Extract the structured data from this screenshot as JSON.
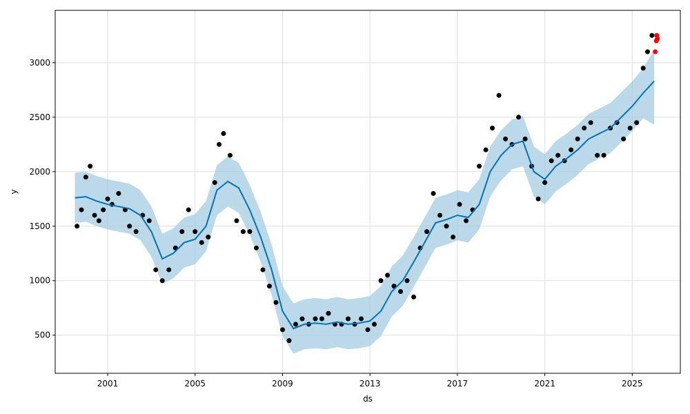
{
  "chart_data": {
    "type": "line",
    "title": "",
    "xlabel": "ds",
    "ylabel": "y",
    "xlim": [
      1998.6,
      2027.2
    ],
    "ylim": [
      150,
      3480
    ],
    "grid": true,
    "x_ticks": [
      2001,
      2005,
      2009,
      2013,
      2017,
      2021,
      2025
    ],
    "x_tick_labels": [
      "2001",
      "2005",
      "2009",
      "2013",
      "2017",
      "2021",
      "2025"
    ],
    "y_ticks": [
      500,
      1000,
      1500,
      2000,
      2500,
      3000
    ],
    "y_tick_labels": [
      "500",
      "1000",
      "1500",
      "2000",
      "2500",
      "3000"
    ],
    "colors": {
      "observed": "#000000",
      "forecast_line": "#0072B2",
      "uncertainty_band": "#A6CCE3",
      "recent_points": "#FF0000"
    },
    "series": [
      {
        "role": "forecast",
        "x": [
          1999.5,
          2000.0,
          2000.5,
          2001.0,
          2001.5,
          2002.0,
          2002.5,
          2003.0,
          2003.5,
          2004.0,
          2004.5,
          2005.0,
          2005.5,
          2006.0,
          2006.5,
          2007.0,
          2007.5,
          2008.0,
          2008.5,
          2009.0,
          2009.5,
          2010.0,
          2010.5,
          2011.0,
          2011.5,
          2012.0,
          2012.5,
          2013.0,
          2013.5,
          2014.0,
          2014.5,
          2015.0,
          2015.5,
          2016.0,
          2016.5,
          2017.0,
          2017.5,
          2018.0,
          2018.5,
          2019.0,
          2019.5,
          2020.0,
          2020.5,
          2021.0,
          2021.5,
          2022.0,
          2022.5,
          2023.0,
          2023.5,
          2024.0,
          2024.5,
          2025.0,
          2025.5,
          2026.0
        ],
        "y": [
          1760,
          1770,
          1730,
          1700,
          1680,
          1660,
          1600,
          1450,
          1200,
          1250,
          1350,
          1380,
          1500,
          1830,
          1910,
          1850,
          1650,
          1400,
          1100,
          720,
          560,
          600,
          610,
          600,
          620,
          600,
          610,
          630,
          720,
          900,
          1000,
          1170,
          1350,
          1530,
          1560,
          1600,
          1580,
          1700,
          2000,
          2150,
          2250,
          2280,
          2000,
          1930,
          2050,
          2120,
          2200,
          2300,
          2350,
          2400,
          2500,
          2600,
          2720,
          2830
        ]
      },
      {
        "role": "forecast_upper",
        "x": [
          1999.5,
          2000.0,
          2000.5,
          2001.0,
          2001.5,
          2002.0,
          2002.5,
          2003.0,
          2003.5,
          2004.0,
          2004.5,
          2005.0,
          2005.5,
          2006.0,
          2006.5,
          2007.0,
          2007.5,
          2008.0,
          2008.5,
          2009.0,
          2009.5,
          2010.0,
          2010.5,
          2011.0,
          2011.5,
          2012.0,
          2012.5,
          2013.0,
          2013.5,
          2014.0,
          2014.5,
          2015.0,
          2015.5,
          2016.0,
          2016.5,
          2017.0,
          2017.5,
          2018.0,
          2018.5,
          2019.0,
          2019.5,
          2020.0,
          2020.5,
          2021.0,
          2021.5,
          2022.0,
          2022.5,
          2023.0,
          2023.5,
          2024.0,
          2024.5,
          2025.0,
          2025.5,
          2026.0
        ],
        "y": [
          1990,
          2000,
          1960,
          1930,
          1910,
          1890,
          1830,
          1680,
          1430,
          1480,
          1580,
          1610,
          1730,
          2060,
          2140,
          2080,
          1880,
          1630,
          1330,
          950,
          790,
          830,
          840,
          830,
          850,
          830,
          840,
          860,
          950,
          1130,
          1230,
          1400,
          1580,
          1760,
          1790,
          1830,
          1810,
          1930,
          2230,
          2380,
          2480,
          2510,
          2230,
          2160,
          2280,
          2350,
          2430,
          2530,
          2580,
          2630,
          2730,
          2830,
          2950,
          3120
        ]
      },
      {
        "role": "forecast_lower",
        "x": [
          1999.5,
          2000.0,
          2000.5,
          2001.0,
          2001.5,
          2002.0,
          2002.5,
          2003.0,
          2003.5,
          2004.0,
          2004.5,
          2005.0,
          2005.5,
          2006.0,
          2006.5,
          2007.0,
          2007.5,
          2008.0,
          2008.5,
          2009.0,
          2009.5,
          2010.0,
          2010.5,
          2011.0,
          2011.5,
          2012.0,
          2012.5,
          2013.0,
          2013.5,
          2014.0,
          2014.5,
          2015.0,
          2015.5,
          2016.0,
          2016.5,
          2017.0,
          2017.5,
          2018.0,
          2018.5,
          2019.0,
          2019.5,
          2020.0,
          2020.5,
          2021.0,
          2021.5,
          2022.0,
          2022.5,
          2023.0,
          2023.5,
          2024.0,
          2024.5,
          2025.0,
          2025.5,
          2026.0
        ],
        "y": [
          1530,
          1540,
          1500,
          1470,
          1450,
          1430,
          1370,
          1220,
          970,
          1020,
          1120,
          1150,
          1270,
          1600,
          1680,
          1620,
          1420,
          1170,
          870,
          490,
          330,
          370,
          380,
          370,
          390,
          370,
          380,
          400,
          490,
          670,
          770,
          940,
          1120,
          1300,
          1330,
          1370,
          1350,
          1470,
          1770,
          1920,
          2020,
          2050,
          1770,
          1700,
          1820,
          1890,
          1970,
          2070,
          2120,
          2170,
          2270,
          2370,
          2490,
          2430
        ]
      },
      {
        "role": "observed",
        "x": [
          1999.6,
          1999.8,
          2000.0,
          2000.2,
          2000.4,
          2000.6,
          2000.8,
          2001.0,
          2001.2,
          2001.5,
          2001.8,
          2002.0,
          2002.3,
          2002.6,
          2002.9,
          2003.2,
          2003.5,
          2003.8,
          2004.1,
          2004.4,
          2004.7,
          2005.0,
          2005.3,
          2005.6,
          2005.9,
          2006.1,
          2006.3,
          2006.6,
          2006.9,
          2007.2,
          2007.5,
          2007.8,
          2008.1,
          2008.4,
          2008.7,
          2009.0,
          2009.3,
          2009.6,
          2009.9,
          2010.2,
          2010.5,
          2010.8,
          2011.1,
          2011.4,
          2011.7,
          2012.0,
          2012.3,
          2012.6,
          2012.9,
          2013.2,
          2013.5,
          2013.8,
          2014.1,
          2014.4,
          2014.7,
          2015.0,
          2015.3,
          2015.6,
          2015.9,
          2016.2,
          2016.5,
          2016.8,
          2017.1,
          2017.4,
          2017.7,
          2018.0,
          2018.3,
          2018.6,
          2018.9,
          2019.2,
          2019.5,
          2019.8,
          2020.1,
          2020.4,
          2020.7,
          2021.0,
          2021.3,
          2021.6,
          2021.9,
          2022.2,
          2022.5,
          2022.8,
          2023.1,
          2023.4,
          2023.7,
          2024.0,
          2024.3,
          2024.6,
          2024.9,
          2025.2,
          2025.5,
          2025.7,
          2025.9
        ],
        "y": [
          1500,
          1650,
          1950,
          2050,
          1600,
          1550,
          1650,
          1750,
          1700,
          1800,
          1650,
          1500,
          1450,
          1600,
          1550,
          1100,
          1000,
          1100,
          1300,
          1450,
          1650,
          1450,
          1350,
          1400,
          1900,
          2250,
          2350,
          2150,
          1550,
          1450,
          1450,
          1300,
          1100,
          950,
          800,
          550,
          450,
          600,
          650,
          600,
          650,
          650,
          700,
          600,
          600,
          650,
          600,
          650,
          550,
          600,
          1000,
          1050,
          950,
          900,
          1000,
          850,
          1300,
          1450,
          1800,
          1600,
          1500,
          1400,
          1700,
          1550,
          1650,
          2050,
          2200,
          2400,
          2700,
          2300,
          2250,
          2500,
          2300,
          2050,
          1750,
          1900,
          2100,
          2150,
          2100,
          2200,
          2300,
          2400,
          2450,
          2150,
          2150,
          2400,
          2450,
          2300,
          2400,
          2450,
          2950,
          3100,
          3250
        ]
      },
      {
        "role": "recent",
        "x": [
          2026.05,
          2026.1,
          2026.12,
          2026.15
        ],
        "y": [
          3100,
          3200,
          3250,
          3220
        ]
      }
    ]
  }
}
